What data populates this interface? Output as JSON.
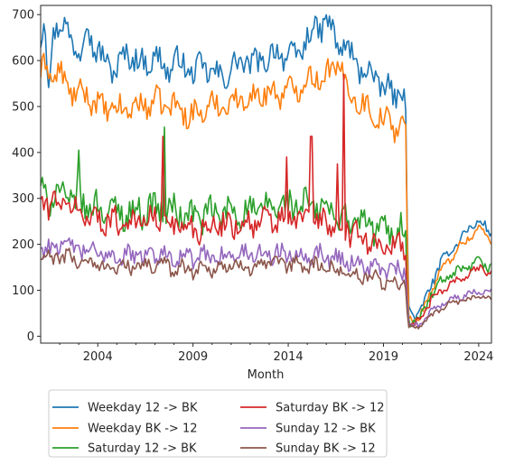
{
  "chart_data": {
    "type": "line",
    "title": "",
    "xlabel": "Month",
    "ylabel": "",
    "xlim": [
      2001.0,
      2024.67
    ],
    "ylim": [
      -15,
      720
    ],
    "x_ticks": [
      2004,
      2009,
      2014,
      2019,
      2024
    ],
    "x_tick_labels": [
      "2004",
      "2009",
      "2014",
      "2019",
      "2024"
    ],
    "y_ticks": [
      0,
      100,
      200,
      300,
      400,
      500,
      600,
      700
    ],
    "y_tick_labels": [
      "0",
      "100",
      "200",
      "300",
      "400",
      "500",
      "600",
      "700"
    ],
    "grid": false,
    "legend_position": "below-left",
    "series": [
      {
        "name": "Weekday 12 -> BK",
        "color": "#1f77b4",
        "level": "high",
        "points": [
          [
            2001.0,
            640
          ],
          [
            2001.2,
            690
          ],
          [
            2001.4,
            545
          ],
          [
            2001.7,
            680
          ],
          [
            2002.2,
            670
          ],
          [
            2002.7,
            650
          ],
          [
            2003.1,
            610
          ],
          [
            2003.4,
            690
          ],
          [
            2003.8,
            630
          ],
          [
            2004.3,
            600
          ],
          [
            2005.0,
            580
          ],
          [
            2005.6,
            620
          ],
          [
            2006.3,
            590
          ],
          [
            2007.0,
            610
          ],
          [
            2007.6,
            580
          ],
          [
            2008.3,
            600
          ],
          [
            2009.0,
            570
          ],
          [
            2009.6,
            590
          ],
          [
            2010.3,
            560
          ],
          [
            2011.0,
            580
          ],
          [
            2011.6,
            600
          ],
          [
            2012.3,
            590
          ],
          [
            2013.0,
            610
          ],
          [
            2013.6,
            620
          ],
          [
            2014.3,
            600
          ],
          [
            2015.0,
            650
          ],
          [
            2015.6,
            670
          ],
          [
            2016.0,
            690
          ],
          [
            2016.5,
            640
          ],
          [
            2017.0,
            630
          ],
          [
            2017.6,
            590
          ],
          [
            2018.3,
            570
          ],
          [
            2018.8,
            550
          ],
          [
            2019.3,
            530
          ],
          [
            2019.8,
            525
          ],
          [
            2020.1,
            545
          ],
          [
            2020.15,
            560
          ],
          [
            2020.3,
            55
          ],
          [
            2020.7,
            45
          ],
          [
            2021.0,
            60
          ],
          [
            2021.5,
            110
          ],
          [
            2022.0,
            160
          ],
          [
            2022.5,
            185
          ],
          [
            2023.0,
            210
          ],
          [
            2023.5,
            235
          ],
          [
            2024.0,
            250
          ],
          [
            2024.3,
            240
          ],
          [
            2024.67,
            220
          ]
        ],
        "noise": 40
      },
      {
        "name": "Weekday BK -> 12",
        "color": "#ff7f0e",
        "level": "high",
        "points": [
          [
            2001.0,
            560
          ],
          [
            2001.3,
            600
          ],
          [
            2001.6,
            565
          ],
          [
            2002.0,
            570
          ],
          [
            2002.5,
            540
          ],
          [
            2003.0,
            520
          ],
          [
            2003.4,
            530
          ],
          [
            2004.0,
            500
          ],
          [
            2005.0,
            490
          ],
          [
            2006.0,
            500
          ],
          [
            2007.0,
            510
          ],
          [
            2008.0,
            500
          ],
          [
            2009.0,
            480
          ],
          [
            2010.0,
            500
          ],
          [
            2011.0,
            510
          ],
          [
            2012.0,
            520
          ],
          [
            2013.0,
            530
          ],
          [
            2014.0,
            530
          ],
          [
            2015.0,
            560
          ],
          [
            2016.0,
            570
          ],
          [
            2016.7,
            590
          ],
          [
            2017.2,
            530
          ],
          [
            2018.0,
            500
          ],
          [
            2019.0,
            470
          ],
          [
            2019.8,
            455
          ],
          [
            2020.1,
            470
          ],
          [
            2020.15,
            480
          ],
          [
            2020.3,
            40
          ],
          [
            2020.7,
            35
          ],
          [
            2021.0,
            50
          ],
          [
            2021.5,
            100
          ],
          [
            2022.0,
            140
          ],
          [
            2022.5,
            170
          ],
          [
            2023.0,
            195
          ],
          [
            2023.5,
            215
          ],
          [
            2024.0,
            235
          ],
          [
            2024.3,
            225
          ],
          [
            2024.67,
            205
          ]
        ],
        "noise": 38
      },
      {
        "name": "Saturday 12 -> BK",
        "color": "#2ca02c",
        "level": "mid",
        "points": [
          [
            2001.0,
            320
          ],
          [
            2001.5,
            300
          ],
          [
            2002.0,
            310
          ],
          [
            2003.0,
            290
          ],
          [
            2004.0,
            280
          ],
          [
            2005.0,
            270
          ],
          [
            2006.0,
            270
          ],
          [
            2007.0,
            280
          ],
          [
            2008.0,
            270
          ],
          [
            2009.0,
            260
          ],
          [
            2010.0,
            265
          ],
          [
            2011.0,
            270
          ],
          [
            2012.0,
            270
          ],
          [
            2013.0,
            280
          ],
          [
            2014.0,
            285
          ],
          [
            2015.0,
            285
          ],
          [
            2016.0,
            275
          ],
          [
            2017.0,
            255
          ],
          [
            2018.0,
            245
          ],
          [
            2019.0,
            230
          ],
          [
            2020.1,
            230
          ],
          [
            2020.15,
            240
          ],
          [
            2020.3,
            35
          ],
          [
            2020.7,
            30
          ],
          [
            2021.0,
            45
          ],
          [
            2021.5,
            90
          ],
          [
            2022.0,
            115
          ],
          [
            2022.5,
            130
          ],
          [
            2023.0,
            140
          ],
          [
            2023.5,
            150
          ],
          [
            2024.0,
            160
          ],
          [
            2024.67,
            150
          ]
        ],
        "noise": 45
      },
      {
        "name": "Saturday BK -> 12",
        "color": "#d62728",
        "level": "mid",
        "points": [
          [
            2001.0,
            300
          ],
          [
            2001.5,
            285
          ],
          [
            2002.0,
            295
          ],
          [
            2003.0,
            270
          ],
          [
            2004.0,
            255
          ],
          [
            2005.0,
            250
          ],
          [
            2006.0,
            250
          ],
          [
            2007.0,
            255
          ],
          [
            2008.0,
            245
          ],
          [
            2009.0,
            235
          ],
          [
            2010.0,
            240
          ],
          [
            2011.0,
            245
          ],
          [
            2012.0,
            245
          ],
          [
            2013.0,
            250
          ],
          [
            2014.0,
            255
          ],
          [
            2015.0,
            255
          ],
          [
            2016.0,
            245
          ],
          [
            2017.0,
            230
          ],
          [
            2018.0,
            215
          ],
          [
            2019.0,
            195
          ],
          [
            2020.1,
            195
          ],
          [
            2020.15,
            205
          ],
          [
            2020.3,
            30
          ],
          [
            2020.7,
            25
          ],
          [
            2021.0,
            40
          ],
          [
            2021.5,
            80
          ],
          [
            2022.0,
            100
          ],
          [
            2022.5,
            115
          ],
          [
            2023.0,
            125
          ],
          [
            2023.5,
            135
          ],
          [
            2024.0,
            150
          ],
          [
            2024.67,
            140
          ]
        ],
        "noise": 40
      },
      {
        "name": "Sunday 12 -> BK",
        "color": "#9467bd",
        "level": "low",
        "points": [
          [
            2001.0,
            200
          ],
          [
            2001.5,
            190
          ],
          [
            2002.0,
            200
          ],
          [
            2003.0,
            190
          ],
          [
            2004.0,
            180
          ],
          [
            2005.0,
            175
          ],
          [
            2006.0,
            175
          ],
          [
            2007.0,
            180
          ],
          [
            2008.0,
            175
          ],
          [
            2009.0,
            170
          ],
          [
            2010.0,
            175
          ],
          [
            2011.0,
            175
          ],
          [
            2012.0,
            180
          ],
          [
            2013.0,
            180
          ],
          [
            2014.0,
            180
          ],
          [
            2015.0,
            180
          ],
          [
            2016.0,
            175
          ],
          [
            2017.0,
            165
          ],
          [
            2018.0,
            155
          ],
          [
            2019.0,
            145
          ],
          [
            2020.1,
            140
          ],
          [
            2020.15,
            150
          ],
          [
            2020.3,
            25
          ],
          [
            2020.7,
            20
          ],
          [
            2021.0,
            30
          ],
          [
            2021.5,
            55
          ],
          [
            2022.0,
            70
          ],
          [
            2022.5,
            80
          ],
          [
            2023.0,
            85
          ],
          [
            2023.5,
            90
          ],
          [
            2024.0,
            100
          ],
          [
            2024.67,
            95
          ]
        ],
        "noise": 28
      },
      {
        "name": "Sunday BK -> 12",
        "color": "#8c564b",
        "level": "low",
        "points": [
          [
            2001.0,
            175
          ],
          [
            2001.5,
            165
          ],
          [
            2002.0,
            175
          ],
          [
            2003.0,
            165
          ],
          [
            2004.0,
            155
          ],
          [
            2005.0,
            150
          ],
          [
            2006.0,
            150
          ],
          [
            2007.0,
            155
          ],
          [
            2008.0,
            150
          ],
          [
            2009.0,
            145
          ],
          [
            2010.0,
            150
          ],
          [
            2011.0,
            150
          ],
          [
            2012.0,
            155
          ],
          [
            2013.0,
            155
          ],
          [
            2014.0,
            155
          ],
          [
            2015.0,
            155
          ],
          [
            2016.0,
            150
          ],
          [
            2017.0,
            140
          ],
          [
            2018.0,
            130
          ],
          [
            2019.0,
            120
          ],
          [
            2020.1,
            115
          ],
          [
            2020.15,
            125
          ],
          [
            2020.3,
            20
          ],
          [
            2020.7,
            15
          ],
          [
            2021.0,
            25
          ],
          [
            2021.5,
            45
          ],
          [
            2022.0,
            60
          ],
          [
            2022.5,
            70
          ],
          [
            2023.0,
            75
          ],
          [
            2023.5,
            80
          ],
          [
            2024.0,
            88
          ],
          [
            2024.67,
            80
          ]
        ],
        "noise": 24
      }
    ],
    "spikes": [
      {
        "series": 2,
        "x": 2003.0,
        "y": 405
      },
      {
        "series": 3,
        "x": 2007.4,
        "y": 435
      },
      {
        "series": 2,
        "x": 2007.5,
        "y": 455
      },
      {
        "series": 3,
        "x": 2013.9,
        "y": 390
      },
      {
        "series": 3,
        "x": 2015.2,
        "y": 435
      },
      {
        "series": 3,
        "x": 2016.6,
        "y": 375
      },
      {
        "series": 3,
        "x": 2016.9,
        "y": 570
      }
    ]
  }
}
